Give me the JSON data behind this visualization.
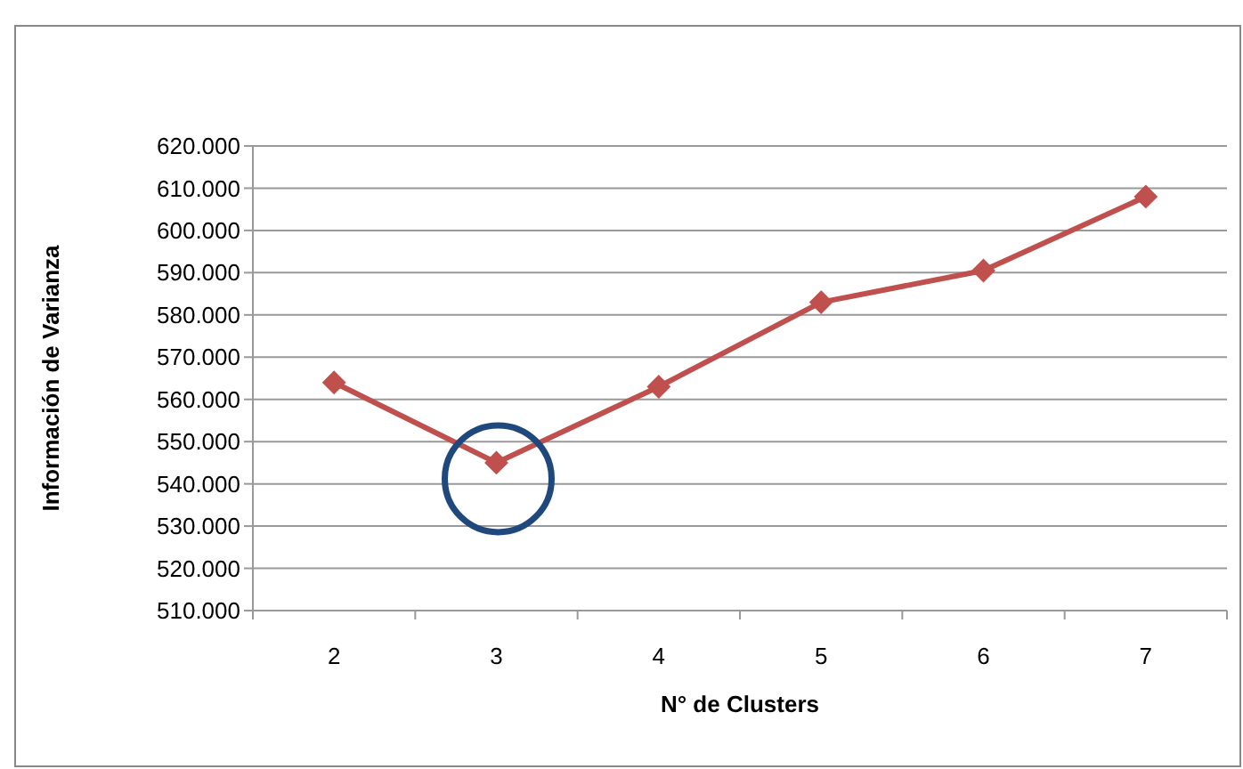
{
  "chart_data": {
    "type": "line",
    "xlabel": "N° de Clusters",
    "ylabel": "Información de Varianza",
    "categories": [
      "2",
      "3",
      "4",
      "5",
      "6",
      "7"
    ],
    "series": [
      {
        "color": "#c0504d",
        "values": [
          564000,
          545000,
          563000,
          583000,
          590500,
          608000
        ]
      }
    ],
    "ylim": [
      510000,
      620000
    ],
    "yticks": [
      {
        "value": 510000,
        "label": "510.000"
      },
      {
        "value": 520000,
        "label": "520.000"
      },
      {
        "value": 530000,
        "label": "530.000"
      },
      {
        "value": 540000,
        "label": "540.000"
      },
      {
        "value": 550000,
        "label": "550.000"
      },
      {
        "value": 560000,
        "label": "560.000"
      },
      {
        "value": 570000,
        "label": "570.000"
      },
      {
        "value": 580000,
        "label": "580.000"
      },
      {
        "value": 590000,
        "label": "590.000"
      },
      {
        "value": 600000,
        "label": "600.000"
      },
      {
        "value": 610000,
        "label": "610.000"
      },
      {
        "value": 620000,
        "label": "620.000"
      }
    ],
    "grid": "y",
    "marker": "diamond",
    "line_style": "solid"
  }
}
